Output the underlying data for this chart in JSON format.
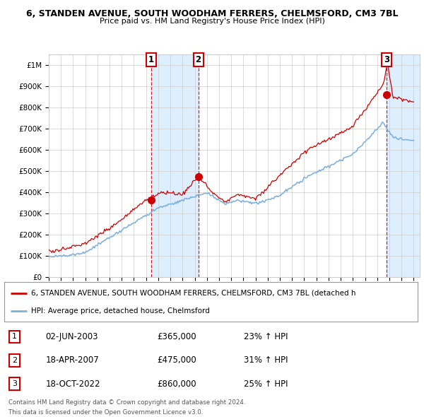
{
  "title": "6, STANDEN AVENUE, SOUTH WOODHAM FERRERS, CHELMSFORD, CM3 7BL",
  "subtitle": "Price paid vs. HM Land Registry's House Price Index (HPI)",
  "ylabel_ticks": [
    "£0",
    "£100K",
    "£200K",
    "£300K",
    "£400K",
    "£500K",
    "£600K",
    "£700K",
    "£800K",
    "£900K",
    "£1M"
  ],
  "ytick_values": [
    0,
    100000,
    200000,
    300000,
    400000,
    500000,
    600000,
    700000,
    800000,
    900000,
    1000000
  ],
  "ylim": [
    0,
    1050000
  ],
  "xlim_start": 1995.0,
  "xlim_end": 2025.5,
  "sale_dates": [
    2003.42,
    2007.29,
    2022.79
  ],
  "sale_prices": [
    365000,
    475000,
    860000
  ],
  "sale_labels": [
    "1",
    "2",
    "3"
  ],
  "legend_line1": "6, STANDEN AVENUE, SOUTH WOODHAM FERRERS, CHELMSFORD, CM3 7BL (detached h",
  "legend_line2": "HPI: Average price, detached house, Chelmsford",
  "table_rows": [
    {
      "num": "1",
      "date": "02-JUN-2003",
      "price": "£365,000",
      "change": "23% ↑ HPI"
    },
    {
      "num": "2",
      "date": "18-APR-2007",
      "price": "£475,000",
      "change": "31% ↑ HPI"
    },
    {
      "num": "3",
      "date": "18-OCT-2022",
      "price": "£860,000",
      "change": "25% ↑ HPI"
    }
  ],
  "footnote1": "Contains HM Land Registry data © Crown copyright and database right 2024.",
  "footnote2": "This data is licensed under the Open Government Licence v3.0.",
  "red_color": "#cc0000",
  "blue_color": "#7aaedc",
  "shade_color": "#ddeeff",
  "grid_color": "#cccccc",
  "background_color": "#ffffff"
}
